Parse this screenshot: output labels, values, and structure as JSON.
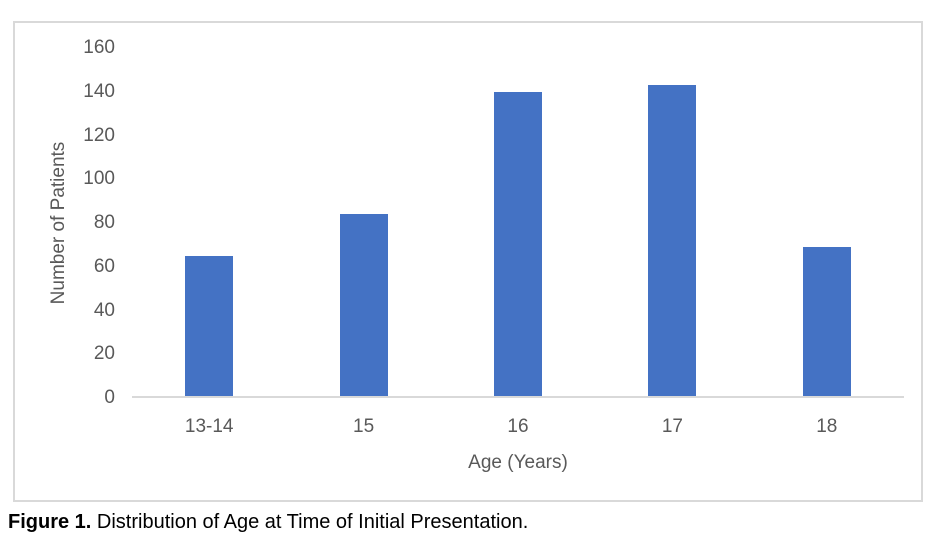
{
  "figure": {
    "caption_label": "Figure 1.",
    "caption_text": " Distribution of Age at Time of Initial Presentation."
  },
  "chart_data": {
    "type": "bar",
    "title": "",
    "categories": [
      "13-14",
      "15",
      "16",
      "17",
      "18"
    ],
    "values": [
      65,
      84,
      140,
      143,
      69
    ],
    "xlabel": "Age (Years)",
    "ylabel": "Number of Patients",
    "ylim": [
      0,
      160
    ],
    "yticks": [
      0,
      20,
      40,
      60,
      80,
      100,
      120,
      140,
      160
    ],
    "grid": false,
    "legend": "none",
    "bar_color": "#4472c4",
    "axis_line_color": "#d9d9d9",
    "tick_label_color": "#595959",
    "caption_color": "#000000"
  }
}
